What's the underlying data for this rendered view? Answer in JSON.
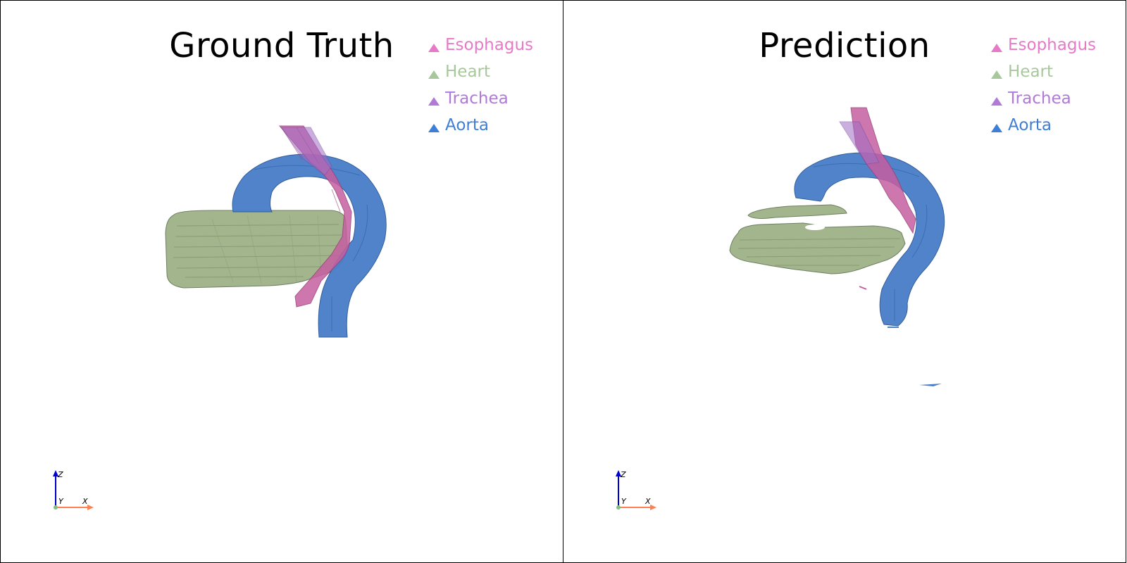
{
  "panels": [
    {
      "title": "Ground Truth",
      "legend": [
        {
          "label": "Esophagus",
          "color": "#e67ac8"
        },
        {
          "label": "Heart",
          "color": "#a8c79a"
        },
        {
          "label": "Trachea",
          "color": "#b07ad8"
        },
        {
          "label": "Aorta",
          "color": "#3f7ed6"
        }
      ],
      "axes": {
        "z": "Z",
        "y": "Y",
        "x": "X"
      }
    },
    {
      "title": "Prediction",
      "legend": [
        {
          "label": "Esophagus",
          "color": "#e67ac8"
        },
        {
          "label": "Heart",
          "color": "#a8c79a"
        },
        {
          "label": "Trachea",
          "color": "#b07ad8"
        },
        {
          "label": "Aorta",
          "color": "#3f7ed6"
        }
      ],
      "axes": {
        "z": "Z",
        "y": "Y",
        "x": "X"
      }
    }
  ],
  "colors": {
    "esophagus_fill": "#c65fa0",
    "heart_fill": "#a3b58c",
    "trachea_fill": "#9f6fc4",
    "aorta_fill": "#4c7fc9",
    "axis_z": "#0000cc",
    "axis_x": "#ff7f50",
    "axis_origin": "#7fbf7f"
  }
}
